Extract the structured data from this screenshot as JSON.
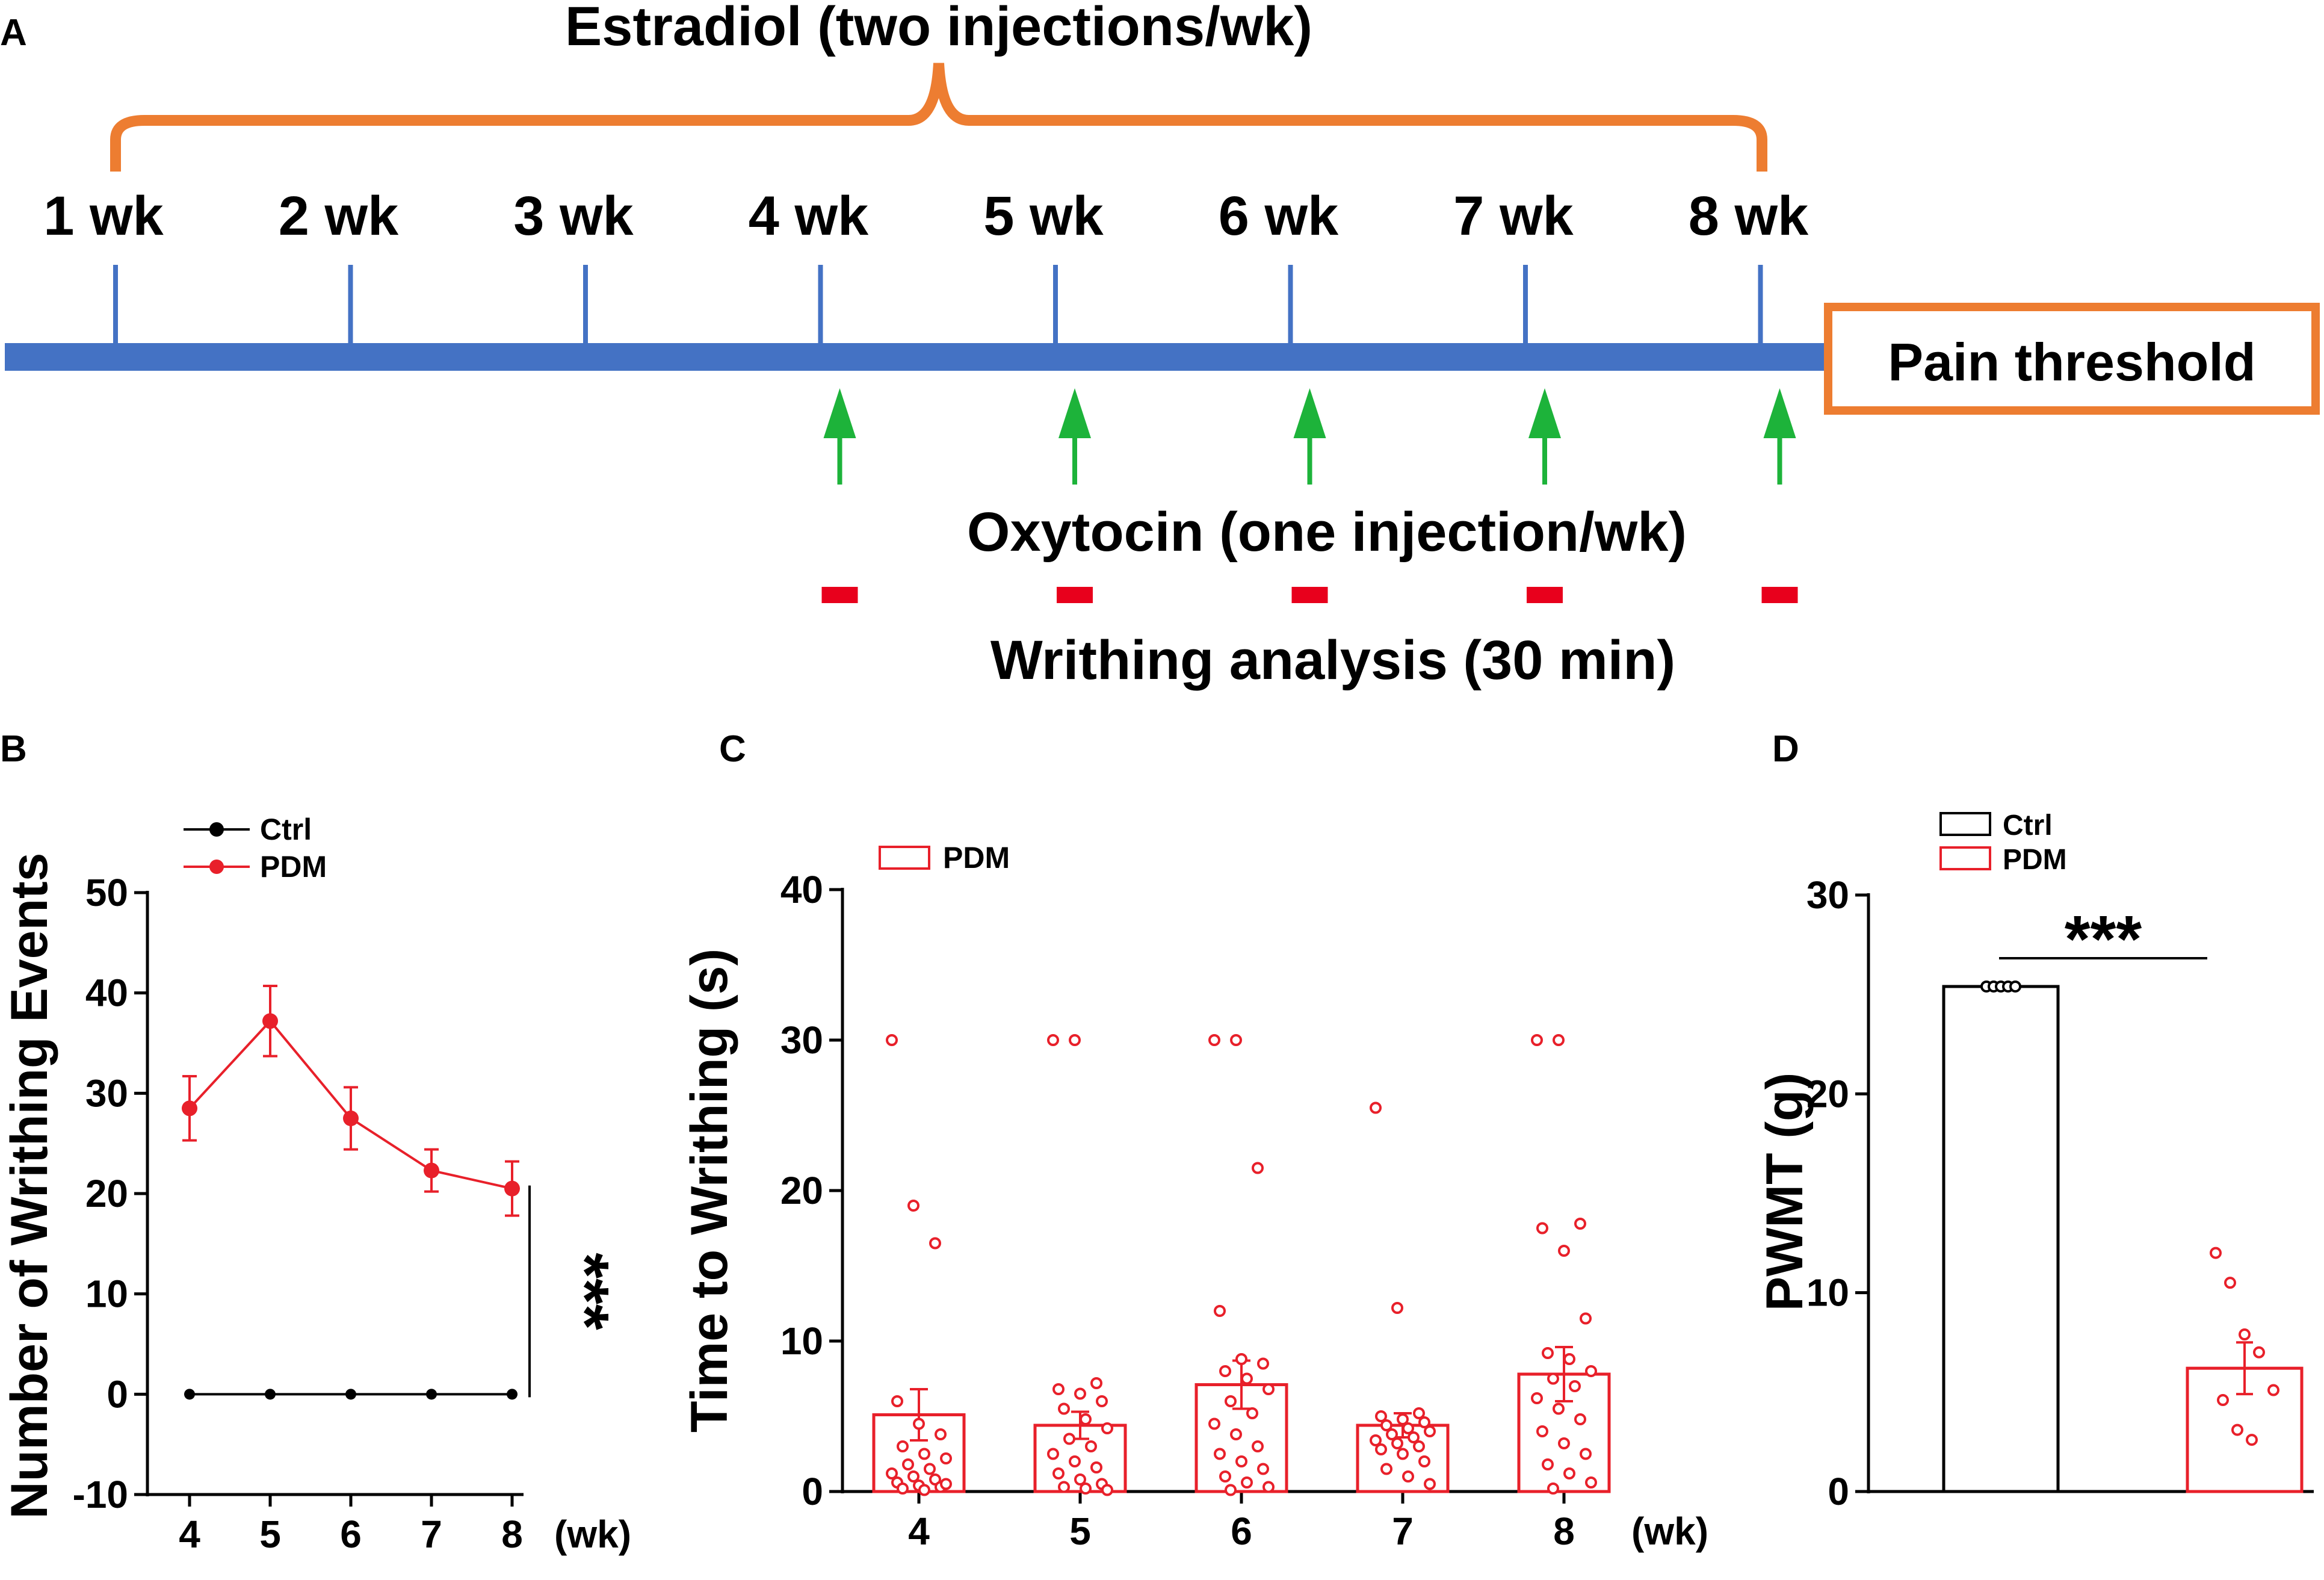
{
  "colors": {
    "timeline": "#4472c4",
    "bracket": "#ed7d31",
    "arrow": "#1db33a",
    "writhing_mark": "#e8001c",
    "ctrl": "#000000",
    "pdm": "#e8202a"
  },
  "panel_a": {
    "label": "A",
    "estradiol_label": "Estradiol (two injections/wk)",
    "weeks": [
      "1 wk",
      "2 wk",
      "3 wk",
      "4 wk",
      "5 wk",
      "6 wk",
      "7 wk",
      "8 wk"
    ],
    "pain_threshold_label": "Pain threshold",
    "oxytocin_label": "Oxytocin (one injection/wk)",
    "writhing_label": "Writhing analysis (30 min)",
    "oxytocin_weeks": [
      4,
      5,
      6,
      7,
      8
    ]
  },
  "chart_data": [
    {
      "panel": "B",
      "type": "line",
      "title": "",
      "xlabel": "(wk)",
      "ylabel": "Number of Writhing Events",
      "categories": [
        "4",
        "5",
        "6",
        "7",
        "8"
      ],
      "ylim": [
        -10,
        50
      ],
      "yticks": [
        "-10",
        "0",
        "10",
        "20",
        "30",
        "40",
        "50"
      ],
      "series": [
        {
          "name": "Ctrl",
          "values": [
            0,
            0,
            0,
            0,
            0
          ],
          "sem": [
            0,
            0,
            0,
            0,
            0
          ]
        },
        {
          "name": "PDM",
          "values": [
            28.5,
            37.2,
            27.5,
            22.3,
            20.5
          ],
          "sem": [
            3.2,
            3.5,
            3.1,
            2.1,
            2.7
          ]
        }
      ],
      "significance": "***",
      "legend": "top-left"
    },
    {
      "panel": "C",
      "type": "bar",
      "title": "",
      "xlabel": "(wk)",
      "ylabel": "Time to Writhing (s)",
      "categories": [
        "4",
        "5",
        "6",
        "7",
        "8"
      ],
      "ylim": [
        0,
        40
      ],
      "yticks": [
        "0",
        "10",
        "20",
        "30",
        "40"
      ],
      "series": [
        {
          "name": "PDM",
          "values": [
            5.1,
            4.4,
            7.1,
            4.4,
            7.8
          ],
          "sem": [
            1.7,
            0.9,
            1.6,
            0.8,
            1.8
          ]
        }
      ],
      "points": [
        [
          30,
          19,
          16.5,
          6,
          4.5,
          3.8,
          3,
          2.5,
          2.2,
          1.8,
          1.5,
          1.2,
          1,
          0.8,
          0.6,
          0.4,
          0.3,
          0.2,
          0.1,
          0.5
        ],
        [
          30,
          30,
          7.2,
          6.8,
          6.5,
          6,
          5.5,
          4.8,
          4.2,
          3.5,
          3,
          2.5,
          2,
          1.6,
          1.2,
          0.8,
          0.5,
          0.3,
          0.2,
          0.1
        ],
        [
          30,
          30,
          21.5,
          12,
          8.8,
          8.5,
          8,
          7.5,
          6.8,
          6,
          5.2,
          4.5,
          3.8,
          3,
          2.5,
          2,
          1.5,
          1,
          0.6,
          0.3,
          0.1
        ],
        [
          25.5,
          12.2,
          5.2,
          5,
          4.8,
          4.6,
          4.4,
          4.2,
          4,
          3.8,
          3.6,
          3.4,
          3.2,
          3,
          2.8,
          2.5,
          2,
          1.5,
          1,
          0.5
        ],
        [
          30,
          30,
          17.8,
          17.5,
          16,
          11.5,
          9.2,
          8.8,
          8,
          7.5,
          7,
          6.2,
          5.5,
          4.8,
          4,
          3.2,
          2.5,
          1.8,
          1.2,
          0.6,
          0.2
        ]
      ],
      "legend": "top-left"
    },
    {
      "panel": "D",
      "type": "bar",
      "title": "",
      "xlabel": "",
      "ylabel": "PWMT (g)",
      "categories": [
        "Ctrl",
        "PDM"
      ],
      "ylim": [
        0,
        30
      ],
      "yticks": [
        "0",
        "10",
        "20",
        "30"
      ],
      "series": [
        {
          "name": "PWMT",
          "values": [
            25.4,
            6.2
          ],
          "sem": [
            0.05,
            1.3
          ]
        }
      ],
      "points": [
        [
          25.4,
          25.4,
          25.4,
          25.4,
          25.4
        ],
        [
          12,
          10.5,
          7.9,
          7,
          5.1,
          4.6,
          3.1,
          2.6
        ]
      ],
      "significance": "***",
      "legend": "top-left"
    }
  ]
}
